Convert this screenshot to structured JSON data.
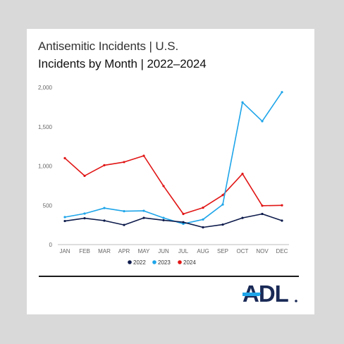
{
  "header": {
    "title": "Antisemitic Incidents | U.S.",
    "subtitle": "Incidents by Month | 2022–2024"
  },
  "logo": {
    "text": "ADL"
  },
  "colors": {
    "s2022": "#0d1b4b",
    "s2023": "#1ea5e9",
    "s2024": "#e11515",
    "logo_navy": "#1a2a57",
    "logo_accent": "#1ea5e9"
  },
  "chart_data": {
    "type": "line",
    "title": "Incidents by Month | 2022–2024",
    "categories": [
      "JAN",
      "FEB",
      "MAR",
      "APR",
      "MAY",
      "JUN",
      "JUL",
      "AUG",
      "SEP",
      "OCT",
      "NOV",
      "DEC"
    ],
    "ylim": [
      0,
      2000
    ],
    "yticks": [
      0,
      500,
      1000,
      1500,
      2000
    ],
    "ytick_labels": [
      "0",
      "500",
      "1,000",
      "1,500",
      "2,000"
    ],
    "grid": false,
    "legend_position": "bottom",
    "series": [
      {
        "name": "2022",
        "color": "#0d1b4b",
        "values": [
          300,
          335,
          305,
          250,
          340,
          310,
          285,
          220,
          255,
          340,
          390,
          305
        ]
      },
      {
        "name": "2023",
        "color": "#1ea5e9",
        "values": [
          350,
          395,
          465,
          425,
          430,
          340,
          265,
          320,
          510,
          1810,
          1570,
          1940
        ]
      },
      {
        "name": "2024",
        "color": "#e11515",
        "values": [
          1100,
          875,
          1010,
          1050,
          1130,
          745,
          390,
          470,
          630,
          900,
          495,
          500
        ]
      }
    ]
  }
}
